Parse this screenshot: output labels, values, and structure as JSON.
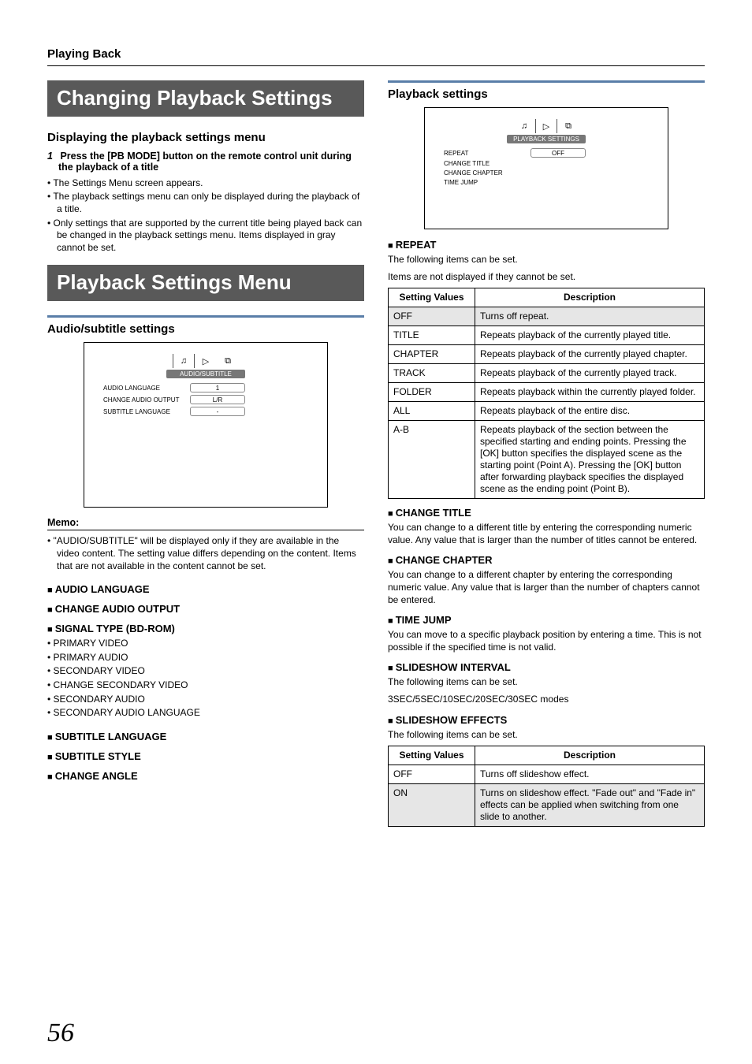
{
  "breadcrumb": "Playing Back",
  "page_number": "56",
  "left": {
    "title1": "Changing Playback Settings",
    "section1": {
      "heading": "Displaying the playback settings menu",
      "step_num": "1",
      "step_text": "Press the [PB MODE] button on the remote control unit during the playback of a title",
      "bullets": [
        "The Settings Menu screen appears.",
        "The playback settings menu can only be displayed during the playback of a title.",
        "Only settings that are supported by the current title being played back can be changed in the playback settings menu.           Items displayed in gray cannot be set."
      ]
    },
    "title2": "Playback Settings Menu",
    "audio_section": {
      "heading": "Audio/subtitle settings",
      "screenshot": {
        "tab_label": "AUDIO/SUBTITLE",
        "rows": [
          {
            "label": "AUDIO LANGUAGE",
            "value": "1"
          },
          {
            "label": "CHANGE AUDIO OUTPUT",
            "value": "L/R"
          },
          {
            "label": "SUBTITLE LANGUAGE",
            "value": "-"
          }
        ]
      },
      "memo_label": "Memo:",
      "memo_text": "\"AUDIO/SUBTITLE\" will be displayed only if they are available in the video content. The setting value differs depending on the content. Items that are not available in the content cannot be set.",
      "subheads": [
        "AUDIO LANGUAGE",
        "CHANGE AUDIO OUTPUT",
        "SIGNAL TYPE (BD-ROM)"
      ],
      "signal_bullets": [
        "PRIMARY VIDEO",
        "PRIMARY AUDIO",
        "SECONDARY VIDEO",
        "CHANGE SECONDARY VIDEO",
        "SECONDARY AUDIO",
        "SECONDARY AUDIO LANGUAGE"
      ],
      "subheads2": [
        "SUBTITLE LANGUAGE",
        "SUBTITLE STYLE",
        "CHANGE ANGLE"
      ]
    }
  },
  "right": {
    "heading": "Playback settings",
    "screenshot": {
      "tab_label": "PLAYBACK SETTINGS",
      "rows": [
        {
          "label": "REPEAT",
          "value": "OFF"
        },
        {
          "label": "CHANGE TITLE",
          "value": ""
        },
        {
          "label": "CHANGE CHAPTER",
          "value": ""
        },
        {
          "label": "TIME JUMP",
          "value": ""
        }
      ]
    },
    "repeat": {
      "heading": "REPEAT",
      "intro1": "The following items can be set.",
      "intro2": "Items are not displayed if they cannot be set.",
      "table": {
        "head": [
          "Setting Values",
          "Description"
        ],
        "rows": [
          {
            "v": "OFF",
            "d": "Turns off repeat.",
            "shaded": true
          },
          {
            "v": "TITLE",
            "d": "Repeats playback of the currently played title."
          },
          {
            "v": "CHAPTER",
            "d": "Repeats playback of the currently played chapter."
          },
          {
            "v": "TRACK",
            "d": "Repeats playback of the currently played track."
          },
          {
            "v": "FOLDER",
            "d": "Repeats playback within the currently played folder."
          },
          {
            "v": "ALL",
            "d": "Repeats playback of the entire disc."
          },
          {
            "v": "A-B",
            "d": "Repeats playback of the section between the specified starting and ending points. Pressing the [OK] button specifies the displayed scene as the starting point (Point A). Pressing the [OK] button after forwarding playback specifies the displayed scene as the ending point (Point B)."
          }
        ]
      }
    },
    "change_title": {
      "heading": "CHANGE TITLE",
      "text": "You can change to a different title by entering the corresponding numeric value. Any value that is larger than the number of titles cannot be entered."
    },
    "change_chapter": {
      "heading": "CHANGE CHAPTER",
      "text": "You can change to a different chapter by entering the corresponding numeric value. Any value that is larger than the number of chapters cannot be entered."
    },
    "time_jump": {
      "heading": "TIME JUMP",
      "text": "You can move to a specific playback position by entering a time. This is not possible if the specified time is not valid."
    },
    "slideshow_interval": {
      "heading": "SLIDESHOW INTERVAL",
      "text1": "The following items can be set.",
      "text2": "3SEC/5SEC/10SEC/20SEC/30SEC modes"
    },
    "slideshow_effects": {
      "heading": "SLIDESHOW EFFECTS",
      "intro": "The following items can be set.",
      "table": {
        "head": [
          "Setting Values",
          "Description"
        ],
        "rows": [
          {
            "v": "OFF",
            "d": "Turns off slideshow effect."
          },
          {
            "v": "ON",
            "d": "Turns on slideshow effect. \"Fade out\" and \"Fade in\" effects can be applied when switching from one slide to another.",
            "shaded": true
          }
        ]
      }
    }
  }
}
